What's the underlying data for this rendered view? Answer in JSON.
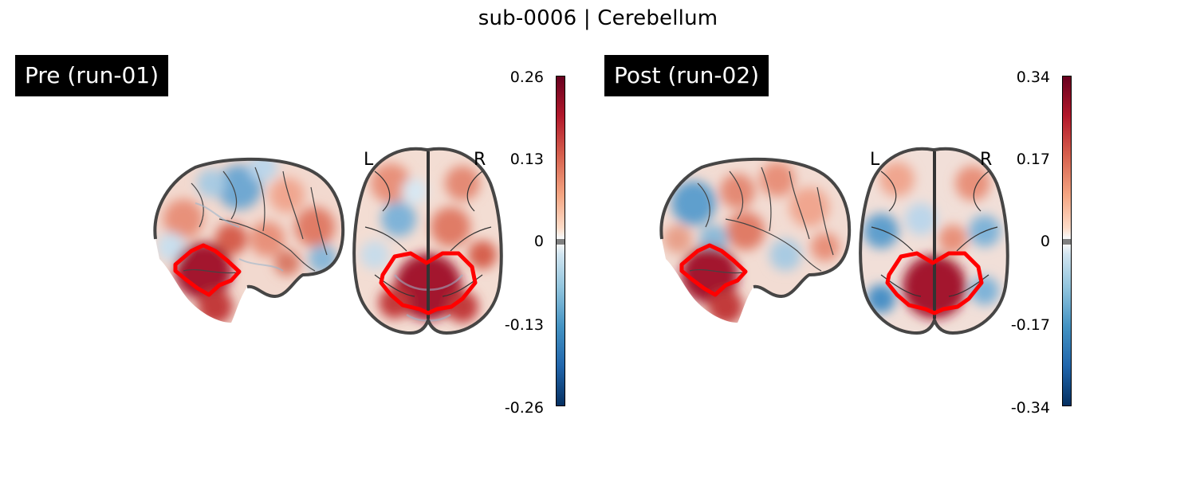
{
  "title": "sub-0006 | Cerebellum",
  "colors": {
    "roi_outline": "#ff0000",
    "positive": "#b2182b",
    "negative": "#2166ac",
    "brain_outline": "#333333"
  },
  "panels": [
    {
      "label": "Pre (run-01)",
      "orientation_left": "L",
      "orientation_right": "R",
      "colorbar": {
        "ticks": [
          "0.26",
          "0.13",
          "0",
          "-0.13",
          "-0.26"
        ],
        "range": [
          -0.26,
          0.26
        ]
      }
    },
    {
      "label": "Post (run-02)",
      "orientation_left": "L",
      "orientation_right": "R",
      "colorbar": {
        "ticks": [
          "0.34",
          "0.17",
          "0",
          "-0.17",
          "-0.34"
        ],
        "range": [
          -0.34,
          0.34
        ]
      }
    }
  ]
}
